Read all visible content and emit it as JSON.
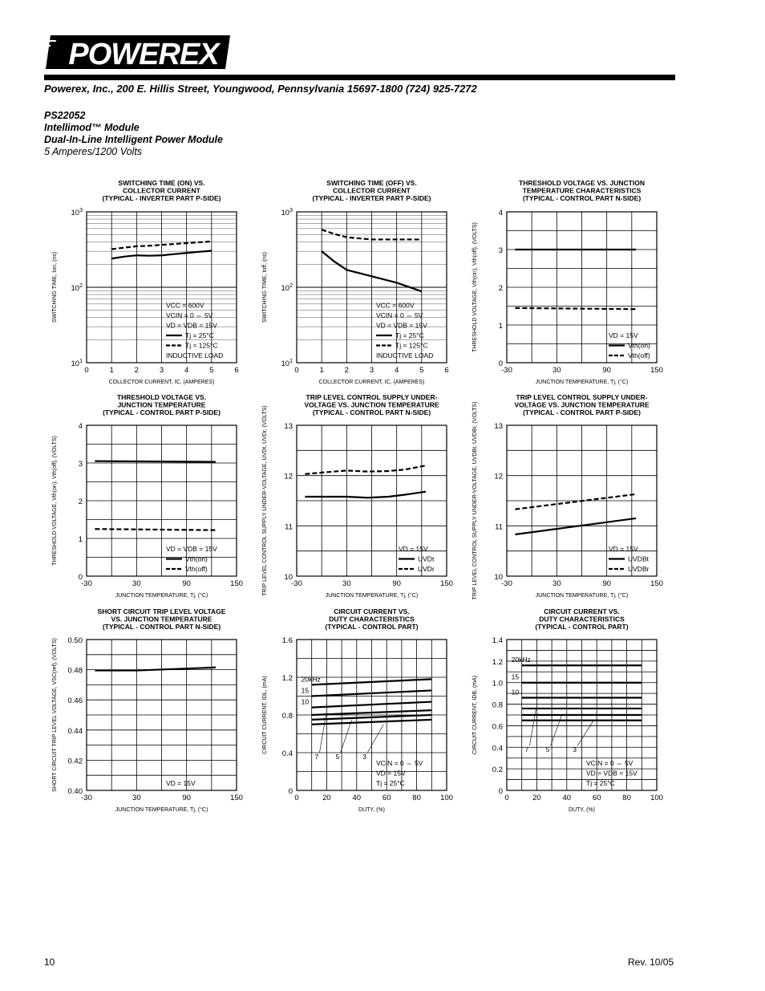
{
  "header": {
    "logo_text": "POWEREX",
    "address": "Powerex, Inc., 200 E. Hillis Street, Youngwood, Pennsylvania 15697-1800 (724) 925-7272",
    "part_number": "PS22052",
    "module_line": "Intellimod™ Module",
    "type_line": "Dual-In-Line Intelligent Power Module",
    "rating_line": "5 Amperes/1200 Volts"
  },
  "footer": {
    "page_number": "10",
    "revision": "Rev. 10/05"
  },
  "chart_data": [
    {
      "id": "c1",
      "type": "line",
      "title": [
        "SWITCHING TIME (ON) VS.",
        "COLLECTOR CURRENT",
        "(TYPICAL - INVERTER PART P-SIDE)"
      ],
      "xlabel": "COLLECTOR CURRENT, IC, (AMPERES)",
      "ylabel": "SWITCHING TIME, ton, (ns)",
      "xlim": [
        0,
        6
      ],
      "ylim": [
        10,
        1000
      ],
      "yscale": "log",
      "xticks": [
        "0",
        "1",
        "2",
        "3",
        "4",
        "5",
        "6"
      ],
      "yticks": [
        "10^1",
        "10^2",
        "10^3"
      ],
      "legend": [
        "VCC = 600V",
        "VCIN = 0 ⇔ 5V",
        "VD = VDB = 15V",
        "Tj = 25°C",
        "Tj = 125°C",
        "INDUCTIVE LOAD"
      ],
      "series": [
        {
          "name": "Tj = 25°C",
          "style": "solid",
          "x": [
            1,
            1.5,
            2,
            2.5,
            3,
            3.5,
            4,
            4.5,
            5
          ],
          "y": [
            240,
            255,
            265,
            262,
            265,
            275,
            285,
            295,
            305
          ]
        },
        {
          "name": "Tj = 125°C",
          "style": "dashed",
          "x": [
            1,
            1.5,
            2,
            2.5,
            3,
            3.5,
            4,
            4.5,
            5
          ],
          "y": [
            320,
            335,
            350,
            355,
            365,
            375,
            385,
            395,
            405
          ]
        }
      ]
    },
    {
      "id": "c2",
      "type": "line",
      "title": [
        "SWITCHING TIME (OFF) VS.",
        "COLLECTOR CURRENT",
        "(TYPICAL - INVERTER PART P-SIDE)"
      ],
      "xlabel": "COLLECTOR CURRENT, IC, (AMPERES)",
      "ylabel": "SWITCHING TIME, toff, (ns)",
      "xlim": [
        0,
        6
      ],
      "ylim": [
        10,
        1000
      ],
      "yscale": "log",
      "xticks": [
        "0",
        "1",
        "2",
        "3",
        "4",
        "5",
        "6"
      ],
      "yticks": [
        "10^1",
        "10^2",
        "10^3"
      ],
      "legend": [
        "VCC = 600V",
        "VCIN = 0 ⇔ 5V",
        "VD = VDB = 15V",
        "Tj = 25°C",
        "Tj = 125°C",
        "INDUCTIVE LOAD"
      ],
      "series": [
        {
          "name": "Tj = 25°C",
          "style": "solid",
          "x": [
            1,
            1.5,
            2,
            3,
            4,
            5
          ],
          "y": [
            300,
            220,
            170,
            140,
            115,
            88
          ]
        },
        {
          "name": "Tj = 125°C",
          "style": "dashed",
          "x": [
            1,
            1.5,
            2,
            3,
            4,
            5
          ],
          "y": [
            580,
            510,
            460,
            430,
            430,
            430
          ]
        }
      ]
    },
    {
      "id": "c3",
      "type": "line",
      "title": [
        "THRESHOLD VOLTAGE VS. JUNCTION",
        "TEMPERATURE CHARACTERISTICS",
        "(TYPICAL - CONTROL PART N-SIDE)"
      ],
      "xlabel": "JUNCTION TEMPERATURE, Tj, (°C)",
      "ylabel": "THRESHOLD VOLTAGE, Vth(on), Vth(off), (VOLTS)",
      "xlim": [
        -30,
        150
      ],
      "ylim": [
        0,
        4
      ],
      "xticks": [
        "-30",
        "30",
        "90",
        "150"
      ],
      "yticks": [
        "0",
        "1",
        "2",
        "3",
        "4"
      ],
      "legend": [
        "VD = 15V",
        "Vth(on)",
        "Vth(off)"
      ],
      "series": [
        {
          "name": "Vth(on)",
          "style": "solid",
          "x": [
            -20,
            125
          ],
          "y": [
            3.0,
            3.0
          ]
        },
        {
          "name": "Vth(off)",
          "style": "dashed",
          "x": [
            -20,
            125
          ],
          "y": [
            1.45,
            1.42
          ]
        }
      ]
    },
    {
      "id": "c4",
      "type": "line",
      "title": [
        "THRESHOLD VOLTAGE VS.",
        "JUNCTION  TEMPERATURE",
        "(TYPICAL - CONTROL PART P-SIDE)"
      ],
      "xlabel": "JUNCTION TEMPERATURE, Tj, (°C)",
      "ylabel": "THRESHOLD VOLTAGE, Vth(on), Vth(off), (VOLTS)",
      "xlim": [
        -30,
        150
      ],
      "ylim": [
        0,
        4
      ],
      "xticks": [
        "-30",
        "30",
        "90",
        "150"
      ],
      "yticks": [
        "0",
        "1",
        "2",
        "3",
        "4"
      ],
      "legend": [
        "VD = VDB = 15V",
        "Vth(on)",
        "Vth(off)"
      ],
      "series": [
        {
          "name": "Vth(on)",
          "style": "solid",
          "x": [
            -20,
            125
          ],
          "y": [
            3.05,
            3.03
          ]
        },
        {
          "name": "Vth(off)",
          "style": "dashed",
          "x": [
            -20,
            125
          ],
          "y": [
            1.25,
            1.22
          ]
        }
      ]
    },
    {
      "id": "c5",
      "type": "line",
      "title": [
        "TRIP LEVEL CONTROL SUPPLY UNDER-",
        "VOLTAGE VS. JUNCTION TEMPERATURE",
        "(TYPICAL - CONTROL PART N-SIDE)"
      ],
      "xlabel": "JUNCTION TEMPERATURE, Tj, (°C)",
      "ylabel": "TRIP LEVEL CONTROL SUPPLY UNDER-VOLTAGE, UVDt, UVDr, (VOLTS)",
      "xlim": [
        -30,
        150
      ],
      "ylim": [
        10,
        13
      ],
      "xticks": [
        "-30",
        "30",
        "90",
        "150"
      ],
      "yticks": [
        "10",
        "11",
        "12",
        "13"
      ],
      "legend": [
        "VD = 15V",
        "UVDt",
        "UVDr"
      ],
      "series": [
        {
          "name": "UVDt",
          "style": "solid",
          "x": [
            -20,
            0,
            30,
            55,
            80,
            100,
            125
          ],
          "y": [
            11.58,
            11.58,
            11.58,
            11.56,
            11.58,
            11.62,
            11.68
          ]
        },
        {
          "name": "UVDr",
          "style": "dashed",
          "x": [
            -20,
            0,
            30,
            55,
            80,
            100,
            125
          ],
          "y": [
            12.03,
            12.06,
            12.1,
            12.08,
            12.09,
            12.12,
            12.2
          ]
        }
      ]
    },
    {
      "id": "c6",
      "type": "line",
      "title": [
        "TRIP LEVEL CONTROL SUPPLY UNDER-",
        "VOLTAGE VS. JUNCTION TEMPERATURE",
        "(TYPICAL - CONTROL PART P-SIDE)"
      ],
      "xlabel": "JUNCTION TEMPERATURE, Tj, (°C)",
      "ylabel": "TRIP LEVEL CONTROL SUPPLY UNDER-VOLTAGE, UVDBt, UVDBr, (VOLTS)",
      "xlim": [
        -30,
        150
      ],
      "ylim": [
        10,
        13
      ],
      "xticks": [
        "-30",
        "30",
        "90",
        "150"
      ],
      "yticks": [
        "10",
        "11",
        "12",
        "13"
      ],
      "legend": [
        "VD = 15V",
        "UVDBt",
        "UVDBr"
      ],
      "series": [
        {
          "name": "UVDBt",
          "style": "solid",
          "x": [
            -20,
            125
          ],
          "y": [
            10.83,
            11.15
          ]
        },
        {
          "name": "UVDBr",
          "style": "dashed",
          "x": [
            -20,
            125
          ],
          "y": [
            11.33,
            11.63
          ]
        }
      ]
    },
    {
      "id": "c7",
      "type": "line",
      "title": [
        "SHORT CIRCUIT TRIP LEVEL VOLTAGE",
        "VS. JUNCTION TEMPERATURE",
        "(TYPICAL - CONTROL PART N-SIDE)"
      ],
      "xlabel": "JUNCTION TEMPERATURE, Tj, (°C)",
      "ylabel": "SHORT CIRCUIT TRIP LEVEL VOLTAGE, VSC(ref), (VOLTS)",
      "xlim": [
        -30,
        150
      ],
      "ylim": [
        0.4,
        0.5
      ],
      "xticks": [
        "-30",
        "30",
        "90",
        "150"
      ],
      "yticks": [
        "0.40",
        "0.42",
        "0.44",
        "0.46",
        "0.48",
        "0.50"
      ],
      "legend": [
        "VD = 15V"
      ],
      "series": [
        {
          "name": "",
          "style": "solid",
          "x": [
            -20,
            30,
            125
          ],
          "y": [
            0.4795,
            0.4795,
            0.4815
          ]
        }
      ]
    },
    {
      "id": "c8",
      "type": "line",
      "title": [
        "CIRCUIT CURRENT VS.",
        "DUTY CHARACTERISTICS",
        "(TYPICAL - CONTROL PART)"
      ],
      "xlabel": "DUTY, (%)",
      "ylabel": "CIRCUIT CURRENT, IDL, (mA)",
      "xlim": [
        0,
        100
      ],
      "ylim": [
        0,
        1.6
      ],
      "xticks": [
        "0",
        "20",
        "40",
        "60",
        "80",
        "100"
      ],
      "yticks": [
        "0",
        "0.4",
        "0.8",
        "1.2",
        "1.6"
      ],
      "legend": [
        "VCIN = 0 ⇔ 5V",
        "VD = 15V",
        "Tj = 25°C"
      ],
      "curve_labels": [
        "20kHz",
        "15",
        "10",
        "7",
        "5",
        "3"
      ],
      "series": [
        {
          "name": "20kHz",
          "style": "solid",
          "x": [
            10,
            90
          ],
          "y": [
            1.12,
            1.18
          ]
        },
        {
          "name": "15",
          "style": "solid",
          "x": [
            10,
            90
          ],
          "y": [
            1.0,
            1.06
          ]
        },
        {
          "name": "10",
          "style": "solid",
          "x": [
            10,
            90
          ],
          "y": [
            0.88,
            0.94
          ]
        },
        {
          "name": "7",
          "style": "solid",
          "x": [
            10,
            90
          ],
          "y": [
            0.8,
            0.85
          ]
        },
        {
          "name": "5",
          "style": "solid",
          "x": [
            10,
            90
          ],
          "y": [
            0.75,
            0.8
          ]
        },
        {
          "name": "3",
          "style": "solid",
          "x": [
            10,
            90
          ],
          "y": [
            0.7,
            0.75
          ]
        }
      ]
    },
    {
      "id": "c9",
      "type": "line",
      "title": [
        "CIRCUIT CURRENT VS.",
        "DUTY CHARACTERISTICS",
        "(TYPICAL - CONTROL PART)"
      ],
      "xlabel": "DUTY,  (%)",
      "ylabel": "CIRCUIT CURRENT, IDB, (mA)",
      "xlim": [
        0,
        100
      ],
      "ylim": [
        0,
        1.4
      ],
      "xticks": [
        "0",
        "20",
        "40",
        "60",
        "80",
        "100"
      ],
      "yticks": [
        "0",
        "0.2",
        "0.4",
        "0.6",
        "0.8",
        "1.0",
        "1.2",
        "1.4"
      ],
      "legend": [
        "VCIN = 0 ⇔ 5V",
        "VD = VDB = 15V",
        "Tj = 25°C"
      ],
      "curve_labels": [
        "20kHz",
        "15",
        "10",
        "7",
        "5",
        "3"
      ],
      "series": [
        {
          "name": "20kHz",
          "style": "solid",
          "x": [
            10,
            90
          ],
          "y": [
            1.16,
            1.16
          ]
        },
        {
          "name": "15",
          "style": "solid",
          "x": [
            10,
            90
          ],
          "y": [
            1.0,
            1.0
          ]
        },
        {
          "name": "10",
          "style": "solid",
          "x": [
            10,
            90
          ],
          "y": [
            0.86,
            0.86
          ]
        },
        {
          "name": "7",
          "style": "solid",
          "x": [
            10,
            90
          ],
          "y": [
            0.76,
            0.76
          ]
        },
        {
          "name": "5",
          "style": "solid",
          "x": [
            10,
            90
          ],
          "y": [
            0.7,
            0.7
          ]
        },
        {
          "name": "3",
          "style": "solid",
          "x": [
            10,
            90
          ],
          "y": [
            0.65,
            0.65
          ]
        }
      ]
    }
  ]
}
